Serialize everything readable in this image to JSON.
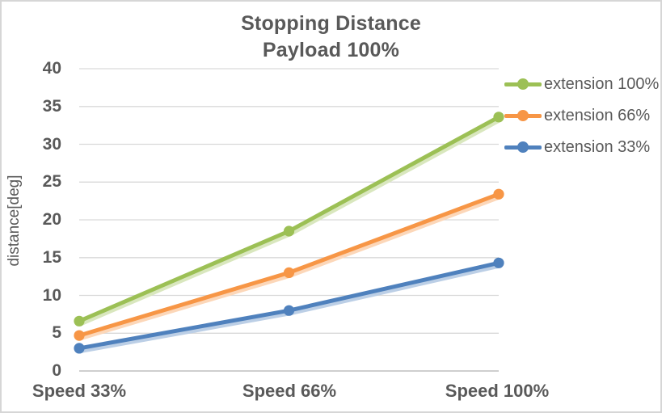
{
  "chart": {
    "title_line1": "Stopping Distance",
    "title_line2": "Payload 100%",
    "y_axis_title": "distance[deg]"
  },
  "chart_data": {
    "type": "line",
    "title": "Stopping Distance Payload 100%",
    "xlabel": "",
    "ylabel": "distance[deg]",
    "categories": [
      "Speed 33%",
      "Speed 66%",
      "Speed 100%"
    ],
    "series": [
      {
        "name": "extension 100%",
        "color": "#9CC055",
        "values": [
          6.6,
          18.5,
          33.6
        ]
      },
      {
        "name": "extension 66%",
        "color": "#F79646",
        "values": [
          4.7,
          13.0,
          23.4
        ]
      },
      {
        "name": "extension 33%",
        "color": "#4F81BD",
        "values": [
          3.0,
          8.0,
          14.3
        ]
      }
    ],
    "ylim": [
      0,
      40
    ],
    "ytick_step": 5,
    "grid": true,
    "legend_position": "right",
    "colors": {
      "text": "#595959",
      "gridline": "#D9D9D9",
      "axis_line": "#BFBFBF",
      "border": "#D6D6D6",
      "background": "#FFFFFF"
    }
  }
}
